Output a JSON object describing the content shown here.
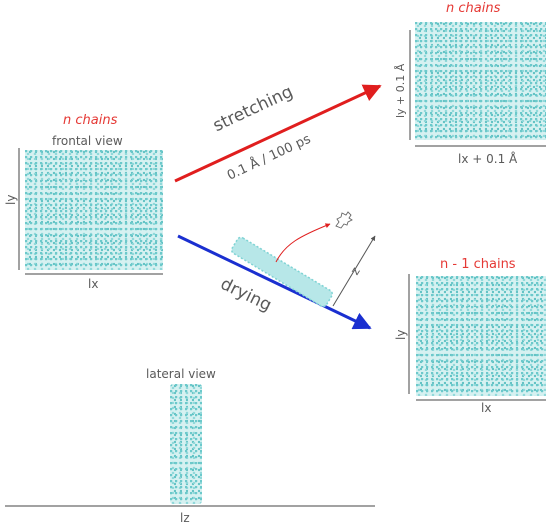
{
  "labels": {
    "n_chains_left": "n chains",
    "frontal_view": "frontal view",
    "ly_left": "ly",
    "lx_left": "lx",
    "stretching": "stretching",
    "rate": "0.1 Å / 100 ps",
    "drying": "drying",
    "z": "z",
    "n_chains_top_right": "n chains",
    "ly_stretched": "ly + 0.1 Å",
    "lx_stretched": "lx + 0.1 Å",
    "n_minus_1_chains": "n - 1 chains",
    "ly_right": "ly",
    "lx_right": "lx",
    "lateral_view": "lateral view",
    "lz": "lz"
  },
  "colors": {
    "stretch_arrow": "#e01e1e",
    "dry_arrow": "#1a2fd0",
    "polymer": "#7fd3d4",
    "red_text": "#e53935"
  }
}
